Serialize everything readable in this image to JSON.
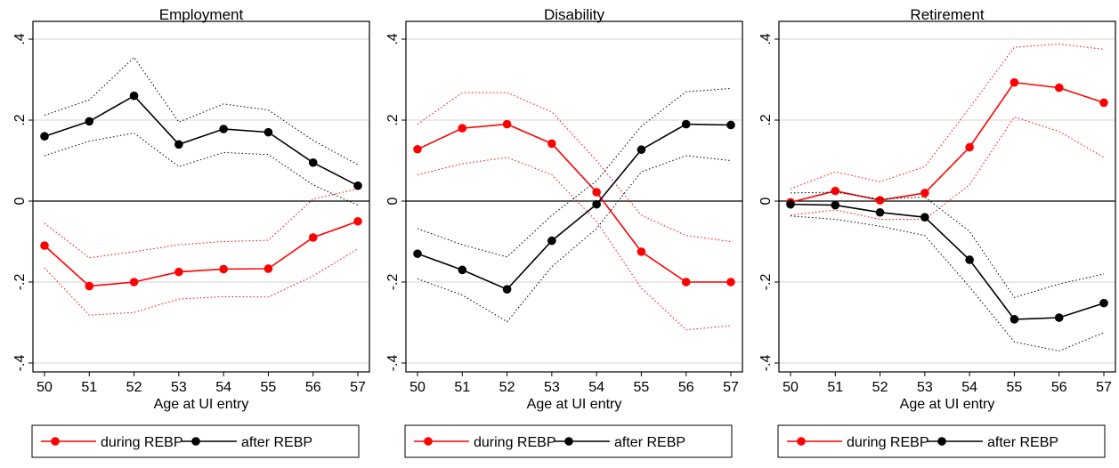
{
  "chart_data": [
    {
      "type": "line",
      "title": "Employment",
      "xlabel": "Age at UI entry",
      "ylabel": "",
      "x": [
        50,
        51,
        52,
        53,
        54,
        55,
        56,
        57
      ],
      "ylim": [
        -0.42,
        0.42
      ],
      "yticks": [
        0.4,
        0.2,
        0,
        -0.2,
        -0.4
      ],
      "ytick_labels": [
        ".4",
        ".2",
        "0",
        "-.2",
        "-.4"
      ],
      "grid": true,
      "legend_position": "bottom",
      "series": [
        {
          "name": "during REBP",
          "color": "#ff0000",
          "values": [
            -0.11,
            -0.21,
            -0.2,
            -0.175,
            -0.168,
            -0.167,
            -0.09,
            -0.05
          ],
          "ci_upper": [
            -0.055,
            -0.14,
            -0.125,
            -0.108,
            -0.1,
            -0.097,
            0.005,
            0.03
          ],
          "ci_lower": [
            -0.165,
            -0.282,
            -0.275,
            -0.242,
            -0.236,
            -0.237,
            -0.185,
            -0.118
          ]
        },
        {
          "name": "after REBP",
          "color": "#000000",
          "values": [
            0.16,
            0.197,
            0.26,
            0.14,
            0.178,
            0.17,
            0.095,
            0.038
          ],
          "ci_upper": [
            0.212,
            0.25,
            0.355,
            0.195,
            0.24,
            0.225,
            0.15,
            0.09
          ],
          "ci_lower": [
            0.112,
            0.148,
            0.168,
            0.085,
            0.12,
            0.115,
            0.04,
            -0.01
          ]
        }
      ]
    },
    {
      "type": "line",
      "title": "Disability",
      "xlabel": "Age at UI entry",
      "ylabel": "",
      "x": [
        50,
        51,
        52,
        53,
        54,
        55,
        56,
        57
      ],
      "ylim": [
        -0.42,
        0.42
      ],
      "yticks": [
        0.4,
        0.2,
        0,
        -0.2,
        -0.4
      ],
      "ytick_labels": [
        ".4",
        ".2",
        "0",
        "-.2",
        "-.4"
      ],
      "grid": true,
      "legend_position": "bottom",
      "series": [
        {
          "name": "during REBP",
          "color": "#ff0000",
          "values": [
            0.128,
            0.18,
            0.19,
            0.142,
            0.022,
            -0.125,
            -0.2,
            -0.2
          ],
          "ci_upper": [
            0.19,
            0.268,
            0.268,
            0.22,
            0.1,
            -0.035,
            -0.085,
            -0.1
          ],
          "ci_lower": [
            0.065,
            0.092,
            0.108,
            0.065,
            -0.05,
            -0.215,
            -0.318,
            -0.308
          ]
        },
        {
          "name": "after REBP",
          "color": "#000000",
          "values": [
            -0.13,
            -0.17,
            -0.218,
            -0.098,
            -0.008,
            0.127,
            0.19,
            0.188
          ],
          "ci_upper": [
            -0.068,
            -0.108,
            -0.138,
            -0.035,
            0.05,
            0.185,
            0.27,
            0.278
          ],
          "ci_lower": [
            -0.192,
            -0.232,
            -0.298,
            -0.162,
            -0.068,
            0.072,
            0.112,
            0.1
          ]
        }
      ]
    },
    {
      "type": "line",
      "title": "Retirement",
      "xlabel": "Age at UI entry",
      "ylabel": "",
      "x": [
        50,
        51,
        52,
        53,
        54,
        55,
        56,
        57
      ],
      "ylim": [
        -0.42,
        0.42
      ],
      "yticks": [
        0.4,
        0.2,
        0,
        -0.2,
        -0.4
      ],
      "ytick_labels": [
        ".4",
        ".2",
        "0",
        "-.2",
        "-.4"
      ],
      "grid": true,
      "legend_position": "bottom",
      "series": [
        {
          "name": "during REBP",
          "color": "#ff0000",
          "values": [
            -0.003,
            0.025,
            0.002,
            0.02,
            0.133,
            0.293,
            0.28,
            0.243
          ],
          "ci_upper": [
            0.03,
            0.072,
            0.048,
            0.085,
            0.23,
            0.38,
            0.388,
            0.375
          ],
          "ci_lower": [
            -0.035,
            -0.022,
            -0.045,
            -0.045,
            0.04,
            0.208,
            0.172,
            0.108
          ]
        },
        {
          "name": "after REBP",
          "color": "#000000",
          "values": [
            -0.008,
            -0.01,
            -0.028,
            -0.04,
            -0.145,
            -0.292,
            -0.288,
            -0.252
          ],
          "ci_upper": [
            0.02,
            0.022,
            0.005,
            0.01,
            -0.075,
            -0.238,
            -0.205,
            -0.18
          ],
          "ci_lower": [
            -0.037,
            -0.045,
            -0.062,
            -0.085,
            -0.212,
            -0.348,
            -0.37,
            -0.325
          ]
        }
      ]
    }
  ]
}
